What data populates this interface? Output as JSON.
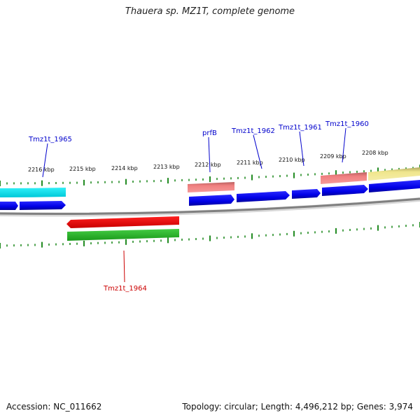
{
  "title": "Thauera sp. MZ1T, complete genome",
  "footer": {
    "accession": "Accession: NC_011662",
    "summary": "Topology: circular; Length: 4,496,212 bp; Genes: 3,974"
  },
  "colors": {
    "backbone": "#808080",
    "ticks": "#228b22",
    "gene_label_forward": "#0000cc",
    "gene_label_reverse": "#cc0000",
    "cds_blue": "#0000ee",
    "cds_red": "#ee0000",
    "cds_green": "#22bb22",
    "cds_cyan": "#00e5ee",
    "feature_salmon": "#f08080",
    "feature_khaki": "#f0e68c"
  },
  "scale_labels": [
    "2216 kbp",
    "2215 kbp",
    "2214 kbp",
    "2213 kbp",
    "2212 kbp",
    "2211 kbp",
    "2210 kbp",
    "2209 kbp",
    "2208 kbp"
  ],
  "gene_labels": [
    {
      "id": "tmz1t-1965",
      "text": "Tmz1t_1965",
      "strand": "forward"
    },
    {
      "id": "prfb",
      "text": "prfB",
      "strand": "forward"
    },
    {
      "id": "tmz1t-1962",
      "text": "Tmz1t_1962",
      "strand": "forward"
    },
    {
      "id": "tmz1t-1961",
      "text": "Tmz1t_1961",
      "strand": "forward"
    },
    {
      "id": "tmz1t-1960",
      "text": "Tmz1t_1960",
      "strand": "forward"
    },
    {
      "id": "tmz1t-1964",
      "text": "Tmz1t_1964",
      "strand": "reverse"
    }
  ]
}
